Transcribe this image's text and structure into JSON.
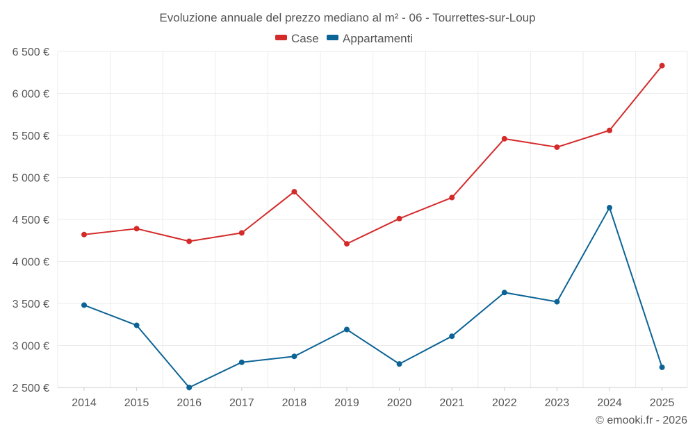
{
  "chart_data": {
    "type": "line",
    "title": "Evoluzione annuale del prezzo mediano al m² - 06 - Tourrettes-sur-Loup",
    "categories": [
      "2014",
      "2015",
      "2016",
      "2017",
      "2018",
      "2019",
      "2020",
      "2021",
      "2022",
      "2023",
      "2024",
      "2025"
    ],
    "series": [
      {
        "name": "Case",
        "color": "#d42a2a",
        "values": [
          4320,
          4390,
          4240,
          4340,
          4830,
          4210,
          4510,
          4760,
          5460,
          5360,
          5560,
          6330
        ]
      },
      {
        "name": "Appartamenti",
        "color": "#0b6396",
        "values": [
          3480,
          3240,
          2500,
          2800,
          2870,
          3190,
          2780,
          3110,
          3630,
          3520,
          4640,
          2740
        ]
      }
    ],
    "ylim": [
      2500,
      6500
    ],
    "yticks": [
      2500,
      3000,
      3500,
      4000,
      4500,
      5000,
      5500,
      6000,
      6500
    ],
    "ytick_labels": [
      "2 500 €",
      "3 000 €",
      "3 500 €",
      "4 000 €",
      "4 500 €",
      "5 000 €",
      "5 500 €",
      "6 000 €",
      "6 500 €"
    ],
    "xlabel": "",
    "ylabel": "",
    "grid": true,
    "legend_position": "top-center"
  },
  "credit": "© emooki.fr - 2026"
}
